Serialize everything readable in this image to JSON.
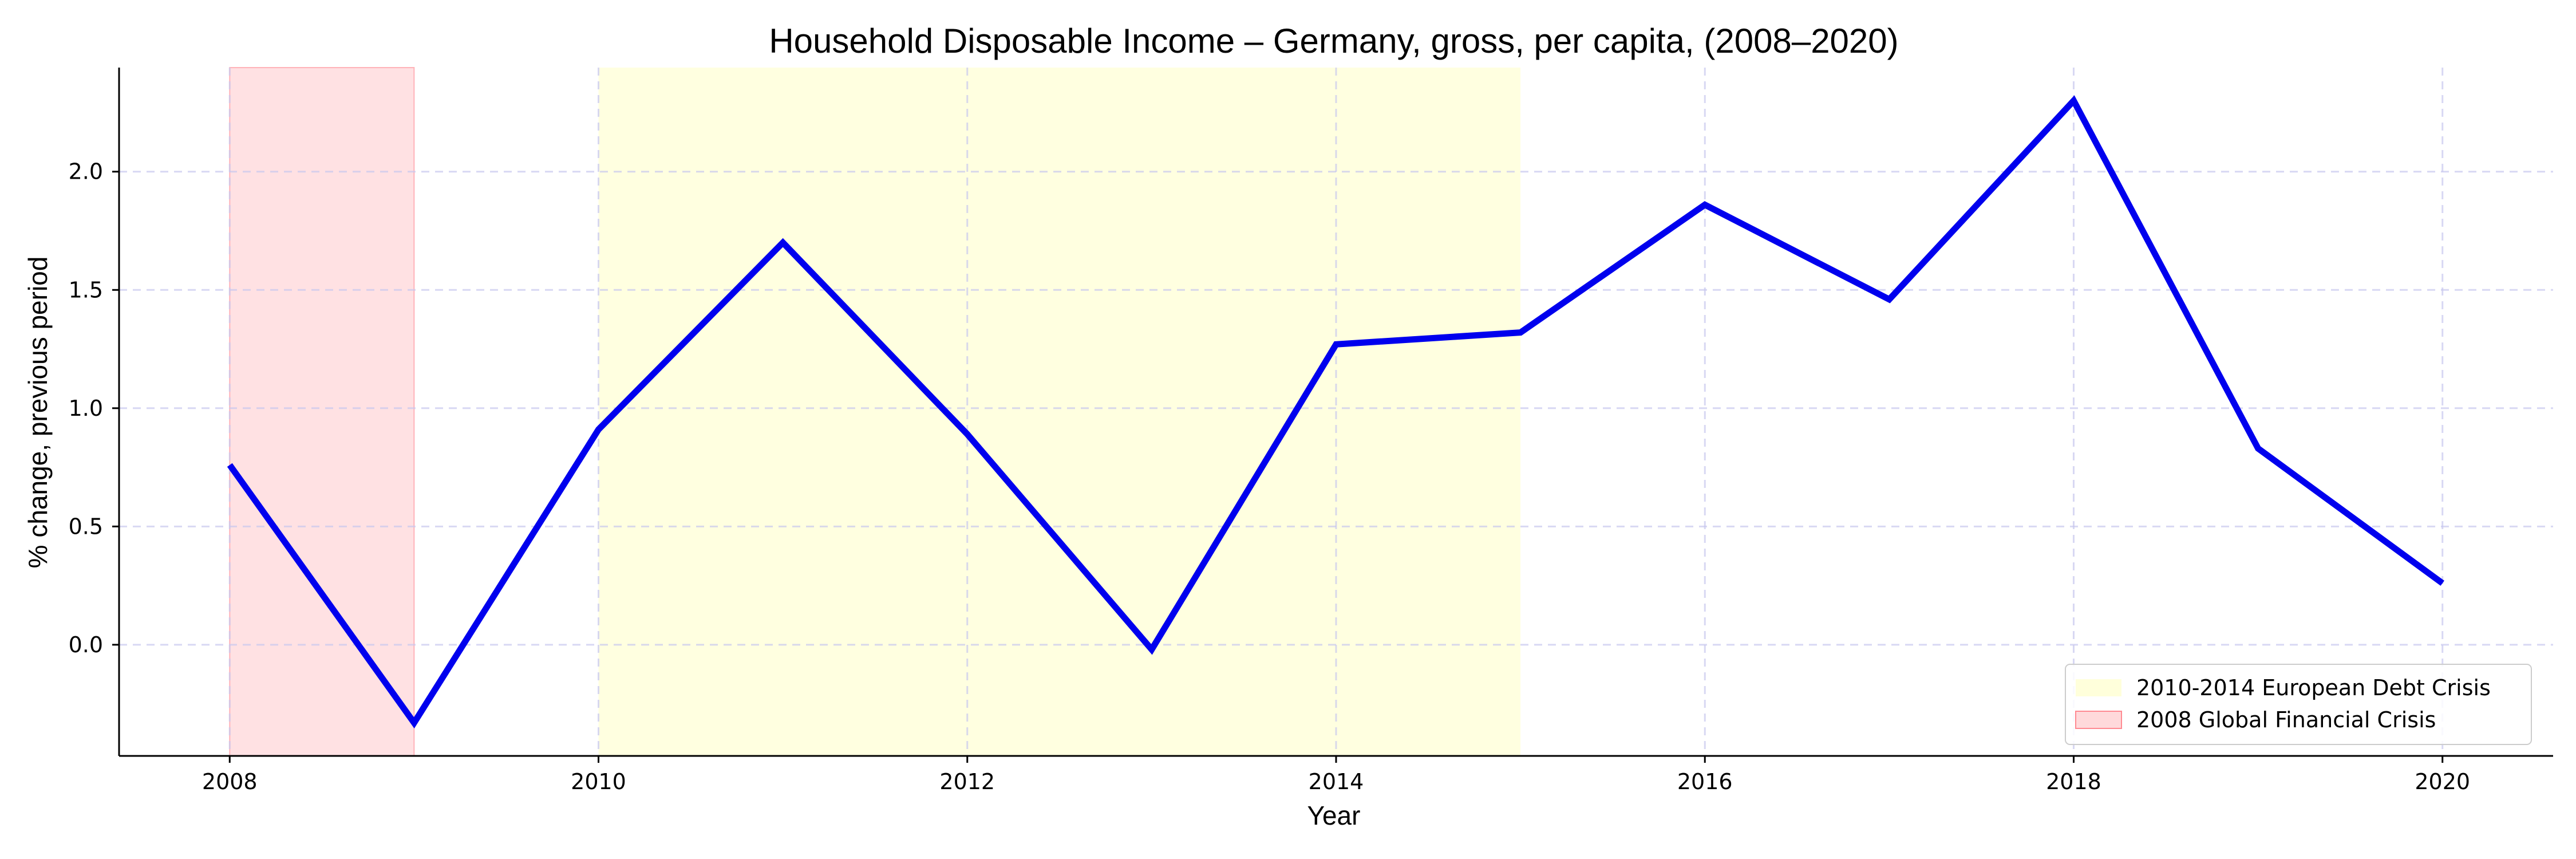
{
  "chart_data": {
    "type": "line",
    "title": "Household Disposable Income – Germany, gross, per capita, (2008–2020)",
    "xlabel": "Year",
    "ylabel": "% change, previous period",
    "xlim": [
      2007.4,
      2020.6
    ],
    "ylim": [
      -0.47,
      2.44
    ],
    "x_ticks": [
      2008,
      2010,
      2012,
      2014,
      2016,
      2018,
      2020
    ],
    "y_ticks": [
      0.0,
      0.5,
      1.0,
      1.5,
      2.0
    ],
    "y_tick_labels": [
      "0.0",
      "0.5",
      "1.0",
      "1.5",
      "2.0"
    ],
    "grid": true,
    "series": [
      {
        "color": "#0000ee",
        "x": [
          2008,
          2009,
          2010,
          2011,
          2012,
          2013,
          2014,
          2015,
          2016,
          2017,
          2018,
          2019,
          2020
        ],
        "y": [
          0.76,
          -0.33,
          0.91,
          1.7,
          0.89,
          -0.02,
          1.27,
          1.32,
          1.86,
          1.46,
          2.3,
          0.83,
          0.26
        ]
      }
    ],
    "shaded_regions": [
      {
        "label": "2008 Global Financial Crisis",
        "x_start": 2008,
        "x_end": 2009,
        "color": "#ffb3b8"
      },
      {
        "label": "2010-2014 European Debt Crisis",
        "x_start": 2010,
        "x_end": 2015,
        "color": "#ffffcc"
      }
    ],
    "legend": {
      "position": "lower-right",
      "entries": [
        {
          "label": "2010-2014 European Debt Crisis",
          "color": "#ffffcc"
        },
        {
          "label": "2008 Global Financial Crisis",
          "color": "#ffb3b8"
        }
      ]
    }
  }
}
